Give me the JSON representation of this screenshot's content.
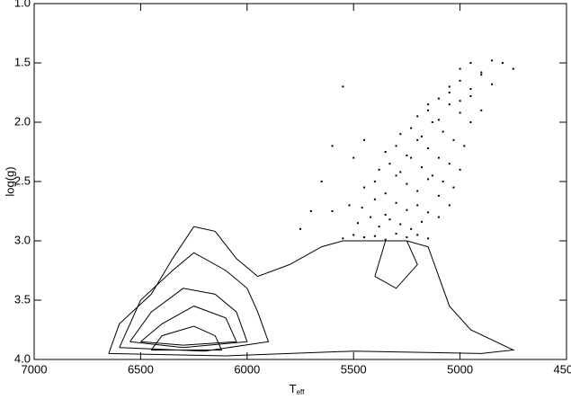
{
  "chart_data": {
    "type": "scatter",
    "xlabel": "T",
    "xlabel_sub": "eff",
    "ylabel": "log(g)",
    "xlim": [
      7000,
      4500
    ],
    "xticks": [
      7000,
      6500,
      6000,
      5500,
      5000,
      4500
    ],
    "ylim": [
      1.0,
      4.0
    ],
    "yticks": [
      {
        "value": 1.0,
        "label": "1.0"
      },
      1.5,
      {
        "value": 2.0,
        "label": "2.0"
      },
      2.5,
      {
        "value": 3.0,
        "label": "3.0"
      },
      3.5,
      {
        "value": 4.0,
        "label": "4.0"
      }
    ],
    "color": "#000000",
    "x": [
      5550,
      5500,
      5450,
      5400,
      5350,
      5300,
      5250,
      5200,
      5150,
      5480,
      5420,
      5380,
      5330,
      5280,
      5230,
      5180,
      5600,
      5520,
      5460,
      5400,
      5350,
      5300,
      5250,
      5200,
      5150,
      5100,
      5450,
      5400,
      5350,
      5300,
      5250,
      5200,
      5150,
      5100,
      5050,
      5380,
      5330,
      5280,
      5230,
      5180,
      5130,
      5080,
      5030,
      5350,
      5300,
      5250,
      5200,
      5150,
      5100,
      5050,
      5000,
      5280,
      5230,
      5180,
      5130,
      5080,
      5030,
      4980,
      5200,
      5150,
      5100,
      5050,
      5000,
      4950,
      5150,
      5100,
      5050,
      5000,
      4950,
      4900,
      5050,
      5000,
      4950,
      4900,
      4850,
      5000,
      4950,
      4900,
      4850,
      5700,
      5650,
      5750,
      5600,
      5550,
      4750,
      4800,
      5500,
      5450
    ],
    "y": [
      2.98,
      2.95,
      2.97,
      2.96,
      2.99,
      2.94,
      2.97,
      2.95,
      2.98,
      2.85,
      2.8,
      2.88,
      2.82,
      2.86,
      2.9,
      2.84,
      2.75,
      2.7,
      2.72,
      2.65,
      2.78,
      2.68,
      2.74,
      2.7,
      2.76,
      2.8,
      2.55,
      2.5,
      2.6,
      2.45,
      2.52,
      2.58,
      2.48,
      2.62,
      2.7,
      2.4,
      2.35,
      2.42,
      2.3,
      2.38,
      2.45,
      2.5,
      2.55,
      2.25,
      2.2,
      2.28,
      2.15,
      2.22,
      2.3,
      2.35,
      2.4,
      2.1,
      2.05,
      2.12,
      2.0,
      2.08,
      2.15,
      2.2,
      1.95,
      1.9,
      1.98,
      1.85,
      1.92,
      2.0,
      1.85,
      1.8,
      1.75,
      1.82,
      1.78,
      1.9,
      1.7,
      1.65,
      1.72,
      1.6,
      1.68,
      1.55,
      1.5,
      1.58,
      1.48,
      2.75,
      2.5,
      2.9,
      2.2,
      1.7,
      1.55,
      1.5,
      2.3,
      2.15
    ],
    "contours": [
      {
        "x": [
          6650,
          6600,
          6450,
          6350,
          6250,
          6150,
          6050,
          5950,
          5800,
          5650,
          5550,
          5400,
          5250,
          5150,
          5100,
          5050,
          4950,
          4750,
          4900,
          5500,
          6100,
          6650
        ],
        "y": [
          3.95,
          3.7,
          3.45,
          3.15,
          2.88,
          2.92,
          3.15,
          3.3,
          3.2,
          3.05,
          3.0,
          3.0,
          3.0,
          3.05,
          3.3,
          3.55,
          3.75,
          3.92,
          3.95,
          3.93,
          3.97,
          3.95
        ]
      },
      {
        "x": [
          6600,
          6500,
          6350,
          6250,
          6100,
          6000,
          5950,
          5900,
          6200,
          6600
        ],
        "y": [
          3.9,
          3.5,
          3.25,
          3.1,
          3.25,
          3.4,
          3.6,
          3.85,
          3.93,
          3.9
        ]
      },
      {
        "x": [
          6550,
          6450,
          6300,
          6150,
          6050,
          6000,
          6300,
          6550
        ],
        "y": [
          3.85,
          3.6,
          3.4,
          3.45,
          3.6,
          3.85,
          3.9,
          3.85
        ]
      },
      {
        "x": [
          6500,
          6400,
          6250,
          6100,
          6050,
          6300,
          6500
        ],
        "y": [
          3.85,
          3.7,
          3.55,
          3.65,
          3.85,
          3.88,
          3.85
        ]
      },
      {
        "x": [
          6450,
          6400,
          6250,
          6150,
          6120,
          6450
        ],
        "y": [
          3.92,
          3.8,
          3.72,
          3.8,
          3.92,
          3.92
        ]
      },
      {
        "x": [
          5400,
          5350,
          5250,
          5200,
          5300,
          5400
        ],
        "y": [
          3.3,
          3.0,
          3.0,
          3.2,
          3.4,
          3.3
        ]
      }
    ]
  }
}
